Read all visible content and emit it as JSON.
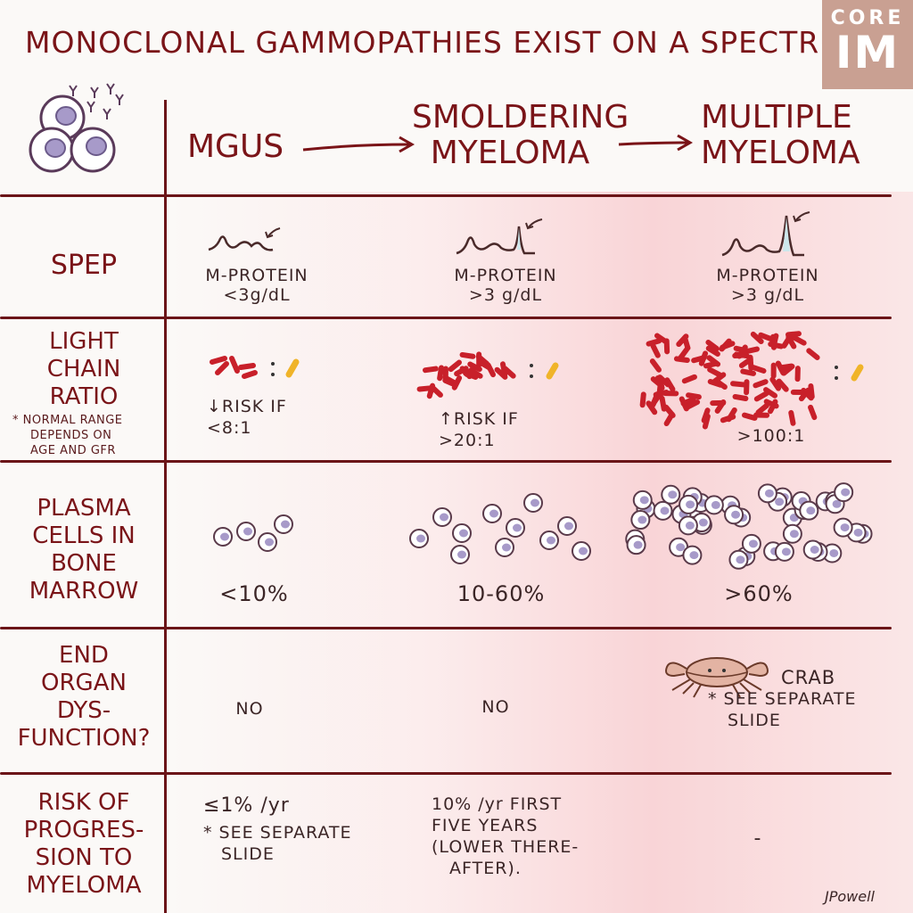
{
  "title": "MONOCLONAL GAMMOPATHIES EXIST ON A SPECTRUM",
  "logo": {
    "line1": "CORE",
    "line2": "IM"
  },
  "stages": {
    "mgus": "MGUS",
    "smoldering_line1": "SMOLDERING",
    "smoldering_line2": "MYELOMA",
    "multiple_line1": "MULTIPLE",
    "multiple_line2": "MYELOMA"
  },
  "rows": {
    "spep": {
      "label": "SPEP",
      "mgus": {
        "l1": "M-PROTEIN",
        "l2": "<3g/dL"
      },
      "smoldering": {
        "l1": "M-PROTEIN",
        "l2": ">3 g/dL"
      },
      "multiple": {
        "l1": "M-PROTEIN",
        "l2": ">3 g/dL"
      }
    },
    "light_chain": {
      "label_l1": "LIGHT",
      "label_l2": "CHAIN",
      "label_l3": "RATIO",
      "note_l1": "* NORMAL RANGE",
      "note_l2": "DEPENDS ON",
      "note_l3": "AGE AND GFR",
      "mgus": {
        "l1": "↓RISK IF",
        "l2": "<8:1"
      },
      "smoldering": {
        "l1": "↑RISK IF",
        "l2": ">20:1"
      },
      "multiple": {
        "l1": ">100:1"
      }
    },
    "plasma": {
      "label_l1": "PLASMA",
      "label_l2": "CELLS IN",
      "label_l3": "BONE",
      "label_l4": "MARROW",
      "mgus": "<10%",
      "smoldering": "10-60%",
      "multiple": ">60%"
    },
    "end_organ": {
      "label_l1": "END",
      "label_l2": "ORGAN",
      "label_l3": "DYS-",
      "label_l4": "FUNCTION?",
      "mgus": "NO",
      "smoldering": "NO",
      "multiple_l1": "CRAB",
      "multiple_l2": "* SEE SEPARATE",
      "multiple_l3": "SLIDE"
    },
    "risk": {
      "label_l1": "RISK OF",
      "label_l2": "PROGRES-",
      "label_l3": "SION TO",
      "label_l4": "MYELOMA",
      "mgus_l1": "≤1% /yr",
      "mgus_l2": "* SEE SEPARATE",
      "mgus_l3": "SLIDE",
      "smoldering_l1": "10% /yr FIRST",
      "smoldering_l2": "FIVE YEARS",
      "smoldering_l3": "(LOWER THERE-",
      "smoldering_l4": "AFTER).",
      "multiple": "-"
    }
  },
  "signature": "JPowell",
  "colors": {
    "maroon": "#7a1418",
    "red_chain": "#c8202a",
    "yellow_chain": "#f0b429",
    "cell_purple": "#a79ac9",
    "logo_bg": "#c9a092"
  }
}
